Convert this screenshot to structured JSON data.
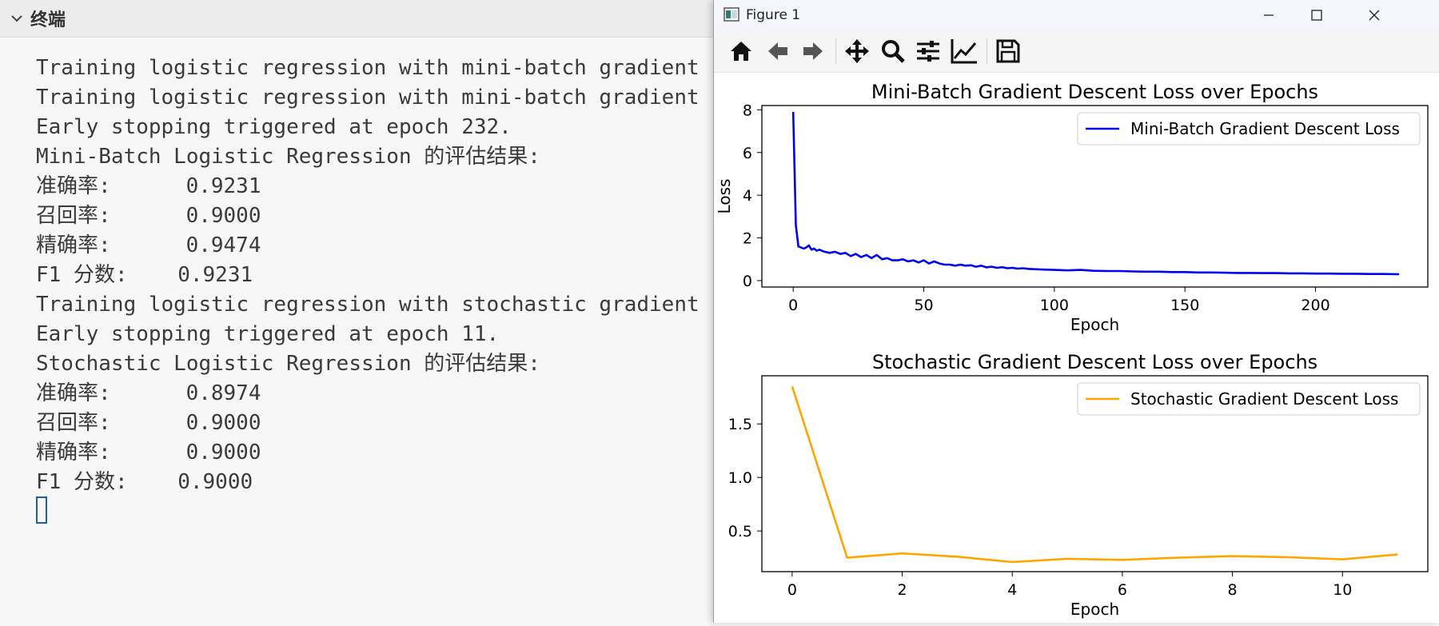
{
  "terminal": {
    "title": "终端",
    "lines": [
      "Training logistic regression with mini-batch gradient",
      "Training logistic regression with mini-batch gradient",
      "Early stopping triggered at epoch 232.",
      "Mini-Batch Logistic Regression 的评估结果:",
      "准确率:      0.9231",
      "召回率:      0.9000",
      "精确率:      0.9474",
      "F1 分数:    0.9231",
      "Training logistic regression with stochastic gradient",
      "Early stopping triggered at epoch 11.",
      "Stochastic Logistic Regression 的评估结果:",
      "准确率:      0.8974",
      "召回率:      0.9000",
      "精确率:      0.9000",
      "F1 分数:    0.9000"
    ]
  },
  "figure_window": {
    "title": "Figure 1",
    "toolbar": [
      "home-icon",
      "back-icon",
      "forward-icon",
      "pan-icon",
      "zoom-icon",
      "configure-subplots-icon",
      "edit-axis-icon",
      "save-icon"
    ]
  },
  "chart_data": [
    {
      "type": "line",
      "title": "Mini-Batch Gradient Descent Loss over Epochs",
      "xlabel": "Epoch",
      "ylabel": "Loss",
      "xlim": [
        -12,
        243
      ],
      "ylim": [
        -0.3,
        8.2
      ],
      "xticks": [
        0,
        50,
        100,
        150,
        200
      ],
      "yticks": [
        0,
        2,
        4,
        6,
        8
      ],
      "legend_position": "top-right",
      "series": [
        {
          "name": "Mini-Batch Gradient Descent Loss",
          "color": "#0000ee",
          "x": [
            0,
            1,
            2,
            3,
            4,
            5,
            6,
            7,
            8,
            9,
            10,
            12,
            14,
            16,
            18,
            20,
            22,
            24,
            26,
            28,
            30,
            32,
            34,
            36,
            38,
            40,
            42,
            44,
            46,
            48,
            50,
            52,
            54,
            56,
            58,
            60,
            62,
            64,
            66,
            68,
            70,
            72,
            74,
            76,
            78,
            80,
            82,
            84,
            86,
            88,
            90,
            95,
            100,
            105,
            110,
            115,
            120,
            125,
            130,
            135,
            140,
            145,
            150,
            155,
            160,
            165,
            170,
            175,
            180,
            185,
            190,
            195,
            200,
            205,
            210,
            215,
            220,
            225,
            232
          ],
          "y": [
            7.9,
            2.6,
            1.6,
            1.55,
            1.5,
            1.55,
            1.65,
            1.45,
            1.5,
            1.4,
            1.45,
            1.35,
            1.3,
            1.35,
            1.25,
            1.3,
            1.15,
            1.25,
            1.1,
            1.2,
            1.05,
            1.2,
            1.0,
            1.05,
            0.95,
            0.95,
            1.0,
            0.9,
            0.95,
            0.85,
            0.95,
            0.8,
            0.9,
            0.8,
            0.75,
            0.75,
            0.7,
            0.75,
            0.7,
            0.72,
            0.65,
            0.7,
            0.62,
            0.65,
            0.6,
            0.63,
            0.58,
            0.6,
            0.56,
            0.58,
            0.55,
            0.52,
            0.5,
            0.48,
            0.5,
            0.46,
            0.45,
            0.45,
            0.43,
            0.42,
            0.42,
            0.4,
            0.4,
            0.38,
            0.38,
            0.37,
            0.36,
            0.36,
            0.35,
            0.35,
            0.34,
            0.34,
            0.33,
            0.33,
            0.32,
            0.32,
            0.31,
            0.31,
            0.3
          ]
        }
      ]
    },
    {
      "type": "line",
      "title": "Stochastic Gradient Descent Loss over Epochs",
      "xlabel": "Epoch",
      "ylabel": "",
      "xlim": [
        -0.55,
        11.55
      ],
      "ylim": [
        0.12,
        1.95
      ],
      "xticks": [
        0,
        2,
        4,
        6,
        8,
        10
      ],
      "yticks": [
        0.5,
        1.0,
        1.5
      ],
      "legend_position": "top-right",
      "series": [
        {
          "name": "Stochastic Gradient Descent Loss",
          "color": "#ffa500",
          "x": [
            0,
            1,
            2,
            3,
            4,
            5,
            6,
            7,
            8,
            9,
            10,
            11
          ],
          "y": [
            1.85,
            0.25,
            0.29,
            0.26,
            0.21,
            0.24,
            0.23,
            0.25,
            0.265,
            0.255,
            0.235,
            0.28
          ]
        }
      ]
    }
  ]
}
